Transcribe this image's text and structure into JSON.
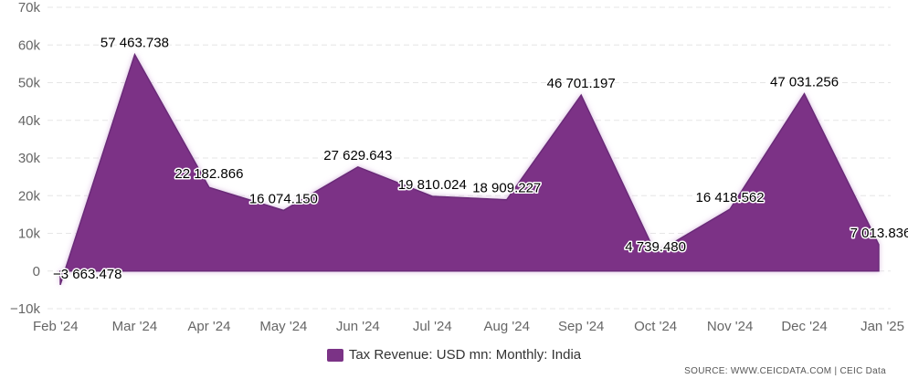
{
  "colors": {
    "series": "#7b3386",
    "series_edge": "#6a2a78",
    "glow": "#d9b8e0"
  },
  "legend": {
    "label": "Tax Revenue: USD mn: Monthly: India"
  },
  "source": "SOURCE: WWW.CEICDATA.COM | CEIC Data",
  "chart_data": {
    "type": "area",
    "categories": [
      "Feb '24",
      "Mar '24",
      "Apr '24",
      "May '24",
      "Jun '24",
      "Jul '24",
      "Aug '24",
      "Sep '24",
      "Oct '24",
      "Nov '24",
      "Dec '24",
      "Jan '25"
    ],
    "series": [
      {
        "name": "Tax Revenue: USD mn: Monthly: India",
        "values": [
          -3663.478,
          57463.738,
          22182.866,
          16074.15,
          27629.643,
          19810.024,
          18909.227,
          46701.197,
          4739.48,
          16418.562,
          47031.256,
          7013.836
        ],
        "labels": [
          "−3 663.478",
          "57 463.738",
          "22 182.866",
          "16 074.150",
          "27 629.643",
          "19 810.024",
          "18 909.227",
          "46 701.197",
          "4 739.480",
          "16 418.562",
          "47 031.256",
          "7 013.836"
        ]
      }
    ],
    "yticks": [
      -10000,
      0,
      10000,
      20000,
      30000,
      40000,
      50000,
      60000,
      70000
    ],
    "ytick_labels": [
      "−10k",
      "0",
      "10k",
      "20k",
      "30k",
      "40k",
      "50k",
      "60k",
      "70k"
    ],
    "ylim": [
      -10000,
      70000
    ],
    "grid": true,
    "legend_position": "bottom-center"
  }
}
